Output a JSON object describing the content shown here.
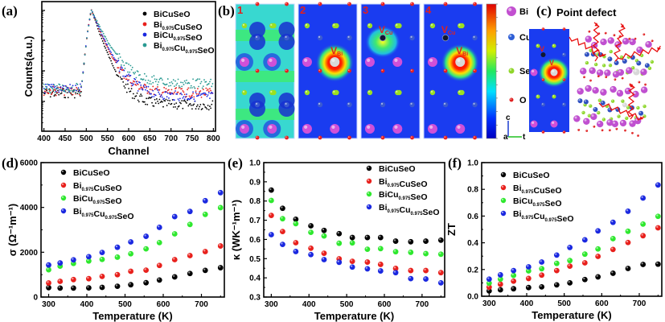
{
  "figure": {
    "panel_labels": [
      "(a)",
      "(b)",
      "(c)",
      "(d)",
      "(e)",
      "(f)"
    ],
    "series_names": [
      {
        "base": "BiCuSeO",
        "parts": [
          [
            "BiCuSeO",
            ""
          ]
        ]
      },
      {
        "base": "Bi0.975CuSeO",
        "parts": [
          [
            "Bi",
            "0.975"
          ],
          [
            "CuSeO",
            ""
          ]
        ]
      },
      {
        "base": "BiCu0.975SeO",
        "parts": [
          [
            "BiCu",
            "0.975"
          ],
          [
            "SeO",
            ""
          ]
        ]
      },
      {
        "base": "Bi0.975Cu0.975SeO",
        "parts": [
          [
            "Bi",
            "0.975"
          ],
          [
            "Cu",
            "0.975"
          ],
          [
            "SeO",
            ""
          ]
        ]
      }
    ],
    "panel_b": {
      "subpanels": [
        "1",
        "2",
        "3",
        "4"
      ],
      "annotations": {
        "v_bi": "V",
        "v_bi_sub": "Bi",
        "v_cu": "V",
        "v_cu_sub": "Cu"
      },
      "colorbar": "rainbow (blue low → red high)",
      "legend": [
        {
          "symbol": "Bi",
          "color": "#c24fd0"
        },
        {
          "symbol": "Cu",
          "color": "#2f5fd6"
        },
        {
          "symbol": "Se",
          "color": "#8fd62a"
        },
        {
          "symbol": "O",
          "color": "#e02020"
        }
      ],
      "axes": {
        "up": "c",
        "origin": "a",
        "right": "t"
      }
    },
    "panel_c": {
      "title": "Point defect"
    }
  },
  "chart_data": [
    {
      "id": "a",
      "type": "scatter",
      "title": "",
      "xlabel": "Channel",
      "ylabel": "Counts(a.u.)",
      "xlim": [
        395,
        805
      ],
      "xticks": [
        400,
        450,
        500,
        550,
        600,
        650,
        700,
        750,
        800
      ],
      "yscale": "log (unlabeled)",
      "colors": [
        "#000000",
        "#e8201c",
        "#1a28e0",
        "#2a9a92"
      ],
      "legend": [
        "BiCuSeO",
        "Bi0.975CuSeO",
        "BiCu0.975SeO",
        "Bi0.975Cu0.975SeO"
      ],
      "legend_position": "top-right",
      "peak_channel": 512,
      "background_levels_relative": [
        0.08,
        0.11,
        0.1,
        0.14
      ]
    },
    {
      "id": "d",
      "type": "scatter",
      "xlabel": "Temperature (K)",
      "ylabel": "σ (Ω⁻¹m⁻¹)",
      "xlim": [
        280,
        760
      ],
      "ylim": [
        0,
        6000
      ],
      "xticks": [
        300,
        400,
        500,
        600,
        700
      ],
      "yticks": [
        0,
        2000,
        4000,
        6000
      ],
      "legend_position": "top-left",
      "x": [
        300,
        330,
        365,
        405,
        440,
        480,
        515,
        555,
        590,
        630,
        670,
        710,
        750
      ],
      "series": [
        {
          "name": "BiCuSeO",
          "color": "#000000",
          "values": [
            420,
            400,
            400,
            410,
            430,
            480,
            550,
            640,
            760,
            900,
            1050,
            1190,
            1310
          ]
        },
        {
          "name": "Bi0.975CuSeO",
          "color": "#e8201c",
          "values": [
            630,
            700,
            780,
            820,
            920,
            1000,
            1150,
            1200,
            1410,
            1670,
            1850,
            2030,
            2280
          ]
        },
        {
          "name": "BiCu0.975SeO",
          "color": "#2ee82e",
          "values": [
            1220,
            1380,
            1500,
            1610,
            1680,
            1780,
            1930,
            2150,
            2430,
            2820,
            3240,
            3690,
            3990
          ]
        },
        {
          "name": "Bi0.975Cu0.975SeO",
          "color": "#1a28e0",
          "values": [
            1430,
            1520,
            1660,
            1800,
            1990,
            2220,
            2460,
            2710,
            3110,
            3590,
            3820,
            4300,
            4660
          ]
        }
      ]
    },
    {
      "id": "e",
      "type": "scatter",
      "xlabel": "Temperature (K)",
      "ylabel": "κ (WK⁻¹m⁻¹)",
      "xlim": [
        280,
        760
      ],
      "ylim": [
        0.3,
        1.0
      ],
      "xticks": [
        300,
        400,
        500,
        600,
        700
      ],
      "yticks": [
        0.3,
        0.4,
        0.5,
        0.6,
        0.7,
        0.8,
        0.9,
        1.0
      ],
      "legend_position": "top-right",
      "x": [
        300,
        330,
        365,
        405,
        440,
        480,
        515,
        555,
        590,
        630,
        670,
        710,
        750
      ],
      "series": [
        {
          "name": "BiCuSeO",
          "color": "#000000",
          "values": [
            0.857,
            0.762,
            0.705,
            0.671,
            0.647,
            0.63,
            0.61,
            0.61,
            0.61,
            0.591,
            0.588,
            0.591,
            0.596
          ]
        },
        {
          "name": "Bi0.975CuSeO",
          "color": "#e8201c",
          "values": [
            0.725,
            0.641,
            0.583,
            0.554,
            0.528,
            0.499,
            0.486,
            0.482,
            0.47,
            0.449,
            0.438,
            0.438,
            0.427
          ]
        },
        {
          "name": "BiCu0.975SeO",
          "color": "#2ee82e",
          "values": [
            0.803,
            0.708,
            0.682,
            0.637,
            0.618,
            0.58,
            0.582,
            0.549,
            0.552,
            0.536,
            0.533,
            0.526,
            0.523
          ]
        },
        {
          "name": "Bi0.975Cu0.975SeO",
          "color": "#1a28e0",
          "values": [
            0.625,
            0.574,
            0.537,
            0.521,
            0.495,
            0.481,
            0.456,
            0.447,
            0.436,
            0.427,
            0.396,
            0.394,
            0.374
          ]
        }
      ]
    },
    {
      "id": "f",
      "type": "scatter",
      "xlabel": "Temperature (K)",
      "ylabel": "ZT",
      "xlim": [
        280,
        760
      ],
      "ylim": [
        0.0,
        1.0
      ],
      "xticks": [
        300,
        400,
        500,
        600,
        700
      ],
      "yticks": [
        0.0,
        0.2,
        0.4,
        0.6,
        0.8,
        1.0
      ],
      "legend_position": "top-left",
      "x": [
        300,
        330,
        365,
        405,
        440,
        480,
        515,
        555,
        590,
        630,
        670,
        710,
        750
      ],
      "series": [
        {
          "name": "BiCuSeO",
          "color": "#000000",
          "values": [
            0.04,
            0.048,
            0.056,
            0.065,
            0.07,
            0.085,
            0.1,
            0.125,
            0.145,
            0.172,
            0.208,
            0.238,
            0.24
          ]
        },
        {
          "name": "Bi0.975CuSeO",
          "color": "#e8201c",
          "values": [
            0.068,
            0.09,
            0.113,
            0.133,
            0.158,
            0.192,
            0.225,
            0.25,
            0.298,
            0.35,
            0.402,
            0.453,
            0.512
          ]
        },
        {
          "name": "BiCu0.975SeO",
          "color": "#2ee82e",
          "values": [
            0.098,
            0.128,
            0.156,
            0.19,
            0.206,
            0.246,
            0.267,
            0.315,
            0.354,
            0.431,
            0.486,
            0.54,
            0.598
          ]
        },
        {
          "name": "Bi0.975Cu0.975SeO",
          "color": "#1a28e0",
          "values": [
            0.128,
            0.16,
            0.192,
            0.22,
            0.256,
            0.308,
            0.365,
            0.422,
            0.489,
            0.553,
            0.636,
            0.735,
            0.833
          ]
        }
      ]
    }
  ]
}
